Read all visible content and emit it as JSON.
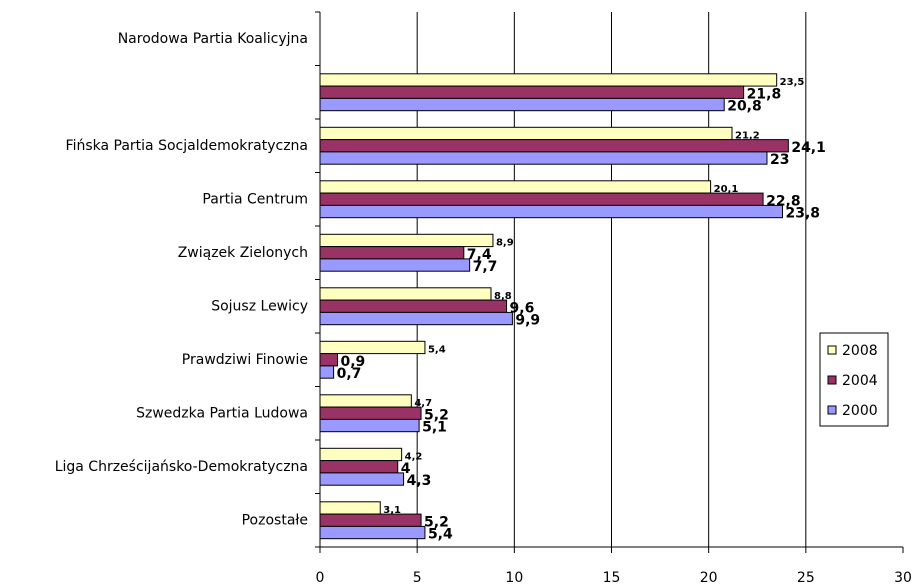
{
  "chart_data": {
    "type": "hbar",
    "categories": [
      "Narodowa Partia Koalicyjna",
      null,
      "Fińska Partia Socjaldemokratyczna",
      "Partia Centrum",
      "Związek Zielonych",
      "Sojusz Lewicy",
      "Prawdziwi Finowie",
      "Szwedzka Partia Ludowa",
      "Liga Chrześcijańsko-Demokratyczna",
      "Pozostałe"
    ],
    "series": [
      {
        "name": "2008",
        "color": "#ffffc0",
        "values": [
          null,
          23.5,
          21.2,
          20.1,
          8.9,
          8.8,
          5.4,
          4.7,
          4.2,
          3.1
        ],
        "value_labels": [
          null,
          "23,5",
          "21,2",
          "20,1",
          "8,9",
          "8,8",
          "5,4",
          "4,7",
          "4,2",
          "3,1"
        ]
      },
      {
        "name": "2004",
        "color": "#993366",
        "values": [
          null,
          21.8,
          24.1,
          22.8,
          7.4,
          9.6,
          0.9,
          5.2,
          4,
          5.2
        ],
        "value_labels": [
          null,
          "21,8",
          "24,1",
          "22,8",
          "7,4",
          "9,6",
          "0,9",
          "5,2",
          "4",
          "5,2"
        ]
      },
      {
        "name": "2000",
        "color": "#9999ff",
        "values": [
          null,
          20.8,
          23,
          23.8,
          7.7,
          9.9,
          0.7,
          5.1,
          4.3,
          5.4
        ],
        "value_labels": [
          null,
          "20,8",
          "23",
          "23,8",
          "7,7",
          "9,9",
          "0,7",
          "5,1",
          "4,3",
          "5,4"
        ]
      }
    ],
    "xlim": [
      0,
      30
    ],
    "xticks": [
      0,
      5,
      10,
      15,
      20,
      25,
      30
    ],
    "grid": true,
    "legend": "right"
  }
}
